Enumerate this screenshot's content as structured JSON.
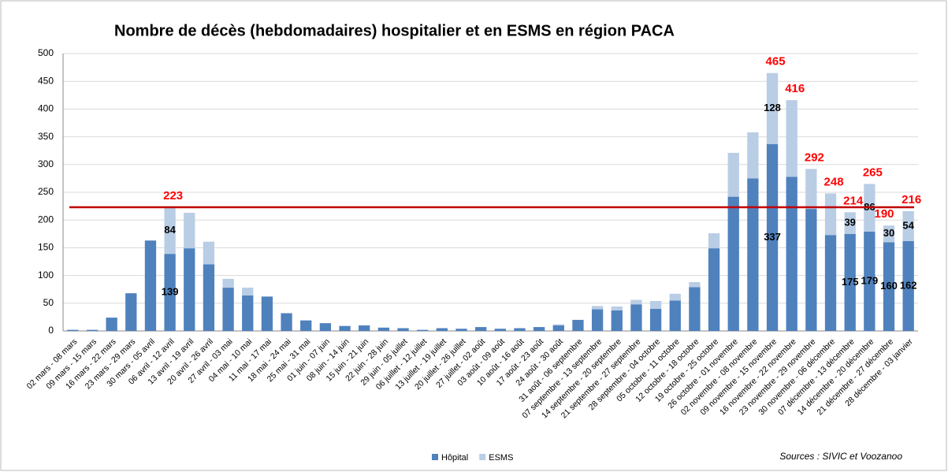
{
  "chart_data": {
    "type": "stacked-bar",
    "title": "Nombre de décès (hebdomadaires) hospitalier et en ESMS en région PACA",
    "source": "Sources : SIVIC et Voozanoo",
    "categories": [
      "02 mars - 08 mars",
      "09 mars - 15 mars",
      "16 mars - 22 mars",
      "23 mars - 29 mars",
      "30 mars - 05 avril",
      "06 avril - 12 avril",
      "13 avril - 19 avril",
      "20 avril - 26 avril",
      "27 avril - 03 mai",
      "04 mai - 10 mai",
      "11 mai - 17 mai",
      "18 mai - 24 mai",
      "25 mai - 31 mai",
      "01 juin - 07 juin",
      "08 juin - 14 juin",
      "15 juin - 21 juin",
      "22 juin - 28 juin",
      "29 juin - 05 juillet",
      "06 juillet - 12 juillet",
      "13 juillet - 19 juillet",
      "20 juillet - 26 juillet",
      "27 juillet - 02 août",
      "03 août - 09 août",
      "10 août - 16 août",
      "17 août - 23 août",
      "24 août - 30 août",
      "31 août - 06 septembre",
      "07 septembre - 13 septembre",
      "14 septembre - 20 septembre",
      "21 septembre - 27 septembre",
      "28 septembre - 04 octobre",
      "05 octobre - 11 octobre",
      "12 octobre - 18 octobre",
      "19 octobre - 25 octobre",
      "26 octobre - 01 novembre",
      "02 novembre - 08 novembre",
      "09 novembre - 15 novembre",
      "16 novembre - 22 novembre",
      "23 novembre - 29 novembre",
      "30 novembre - 06 décembre",
      "07 décembre - 13 décembre",
      "14 décembre - 20 décembre",
      "21 décembre - 27 décembre",
      "28 décembre - 03 janvier"
    ],
    "series": [
      {
        "name": "Hôpital",
        "color": "#4f81bd",
        "values": [
          2,
          2,
          24,
          68,
          163,
          139,
          149,
          120,
          78,
          64,
          62,
          32,
          19,
          14,
          9,
          10,
          6,
          5,
          2,
          5,
          4,
          7,
          4,
          5,
          7,
          10,
          20,
          39,
          37,
          48,
          40,
          55,
          79,
          149,
          242,
          275,
          337,
          278,
          220,
          173,
          175,
          179,
          160,
          162
        ],
        "value_labels": [
          null,
          null,
          null,
          null,
          null,
          "139",
          null,
          null,
          null,
          null,
          null,
          null,
          null,
          null,
          null,
          null,
          null,
          null,
          null,
          null,
          null,
          null,
          null,
          null,
          null,
          null,
          null,
          null,
          null,
          null,
          null,
          null,
          null,
          null,
          null,
          null,
          "337",
          null,
          null,
          null,
          "175",
          "179",
          "160",
          "162"
        ]
      },
      {
        "name": "ESMS",
        "color": "#b9cde5",
        "values": [
          0,
          0,
          0,
          0,
          0,
          84,
          64,
          41,
          16,
          14,
          0,
          0,
          0,
          0,
          0,
          0,
          0,
          0,
          0,
          0,
          0,
          0,
          0,
          0,
          0,
          2,
          0,
          6,
          7,
          8,
          14,
          12,
          9,
          27,
          79,
          83,
          128,
          138,
          72,
          75,
          39,
          86,
          30,
          54
        ],
        "value_labels": [
          null,
          null,
          null,
          null,
          null,
          "84",
          null,
          null,
          null,
          null,
          null,
          null,
          null,
          null,
          null,
          null,
          null,
          null,
          null,
          null,
          null,
          null,
          null,
          null,
          null,
          null,
          null,
          null,
          null,
          null,
          null,
          null,
          null,
          null,
          null,
          null,
          "128",
          null,
          null,
          null,
          "39",
          "86",
          "30",
          "54"
        ]
      }
    ],
    "total_labels": [
      null,
      null,
      null,
      null,
      null,
      "223",
      null,
      null,
      null,
      null,
      null,
      null,
      null,
      null,
      null,
      null,
      null,
      null,
      null,
      null,
      null,
      null,
      null,
      null,
      null,
      null,
      null,
      null,
      null,
      null,
      null,
      null,
      null,
      null,
      null,
      null,
      "465",
      "416",
      "292",
      "248",
      "214",
      "265",
      "190",
      "216"
    ],
    "reference_line": {
      "value": 223,
      "color": "#c00000"
    },
    "ylim": [
      0,
      500
    ],
    "yticks": [
      0,
      50,
      100,
      150,
      200,
      250,
      300,
      350,
      400,
      450,
      500
    ],
    "grid": true
  }
}
